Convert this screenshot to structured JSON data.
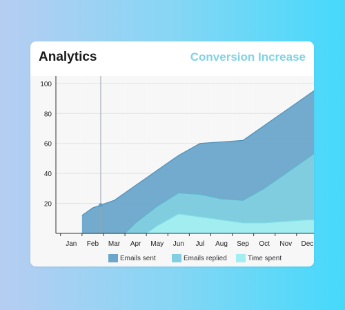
{
  "title": "Analytics",
  "subtitle": "Conversion Increase",
  "colors": {
    "subtitle": "#7fd3e4",
    "emails_sent": "#6aa7cb",
    "emails_replied": "#81cfe0",
    "time_spent": "#a3eef0",
    "marker_line": "#9aa4ab"
  },
  "chart_data": {
    "type": "area",
    "title": "",
    "xlabel": "",
    "ylabel": "",
    "categories": [
      "Jan",
      "Feb",
      "Mar",
      "Apr",
      "May",
      "Jun",
      "Jul",
      "Aug",
      "Sep",
      "Oct",
      "Nov",
      "Dec"
    ],
    "yticks": [
      20,
      40,
      60,
      80,
      100
    ],
    "ylim": [
      0,
      105
    ],
    "grid": true,
    "legend_position": "bottom",
    "highlighted_category": "Feb",
    "series": [
      {
        "name": "Emails sent",
        "x": [
          0.5,
          1,
          2,
          3,
          4,
          5,
          6,
          7,
          8,
          9,
          10,
          11,
          11.5
        ],
        "values": [
          12,
          17,
          22,
          32,
          42,
          52,
          60,
          61,
          62,
          72,
          82,
          92,
          97
        ]
      },
      {
        "name": "Emails replied",
        "x": [
          0.5,
          1,
          2,
          2.5,
          3,
          4,
          5,
          6,
          7,
          8,
          9,
          10,
          11,
          11.5
        ],
        "values": [
          0,
          0,
          0,
          0,
          7,
          18,
          27,
          26,
          23,
          22,
          30,
          40,
          50,
          55
        ]
      },
      {
        "name": "Time spent",
        "x": [
          0.5,
          1,
          2,
          3,
          3.5,
          4,
          5,
          6,
          7,
          8,
          9,
          10,
          11,
          11.5
        ],
        "values": [
          0,
          0,
          0,
          0,
          0,
          5,
          13,
          11,
          9,
          7,
          7,
          8,
          9,
          9
        ]
      }
    ]
  }
}
